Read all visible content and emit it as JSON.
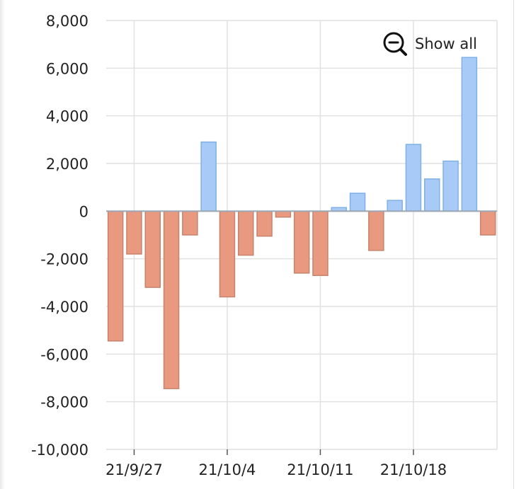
{
  "zoom_control": {
    "label": "Show all",
    "icon": "zoom-out-icon"
  },
  "colors": {
    "positive": "#a7cbf6",
    "positive_stroke": "#7fb0e6",
    "negative": "#e9997f",
    "negative_stroke": "#c7836d",
    "grid": "#e1e1e1"
  },
  "chart_data": {
    "type": "bar",
    "title": "",
    "xlabel": "",
    "ylabel": "",
    "ylim": [
      -10000,
      8000
    ],
    "grid": true,
    "y_ticks": [
      8000,
      6000,
      4000,
      2000,
      0,
      -2000,
      -4000,
      -6000,
      -8000,
      -10000
    ],
    "y_tick_labels": [
      "8,000",
      "6,000",
      "4,000",
      "2,000",
      "0",
      "-2,000",
      "-4,000",
      "-6,000",
      "-8,000",
      "-10,000"
    ],
    "x_tick_labels": [
      "21/9/27",
      "21/10/4",
      "21/10/11",
      "21/10/18"
    ],
    "x_tick_positions": [
      1,
      6,
      11,
      16
    ],
    "values": [
      -5450,
      -1800,
      -3200,
      -7450,
      -1000,
      2900,
      -3600,
      -1850,
      -1050,
      -250,
      -2600,
      -2700,
      150,
      750,
      -1650,
      450,
      2800,
      1350,
      2100,
      6450,
      -1000
    ]
  }
}
